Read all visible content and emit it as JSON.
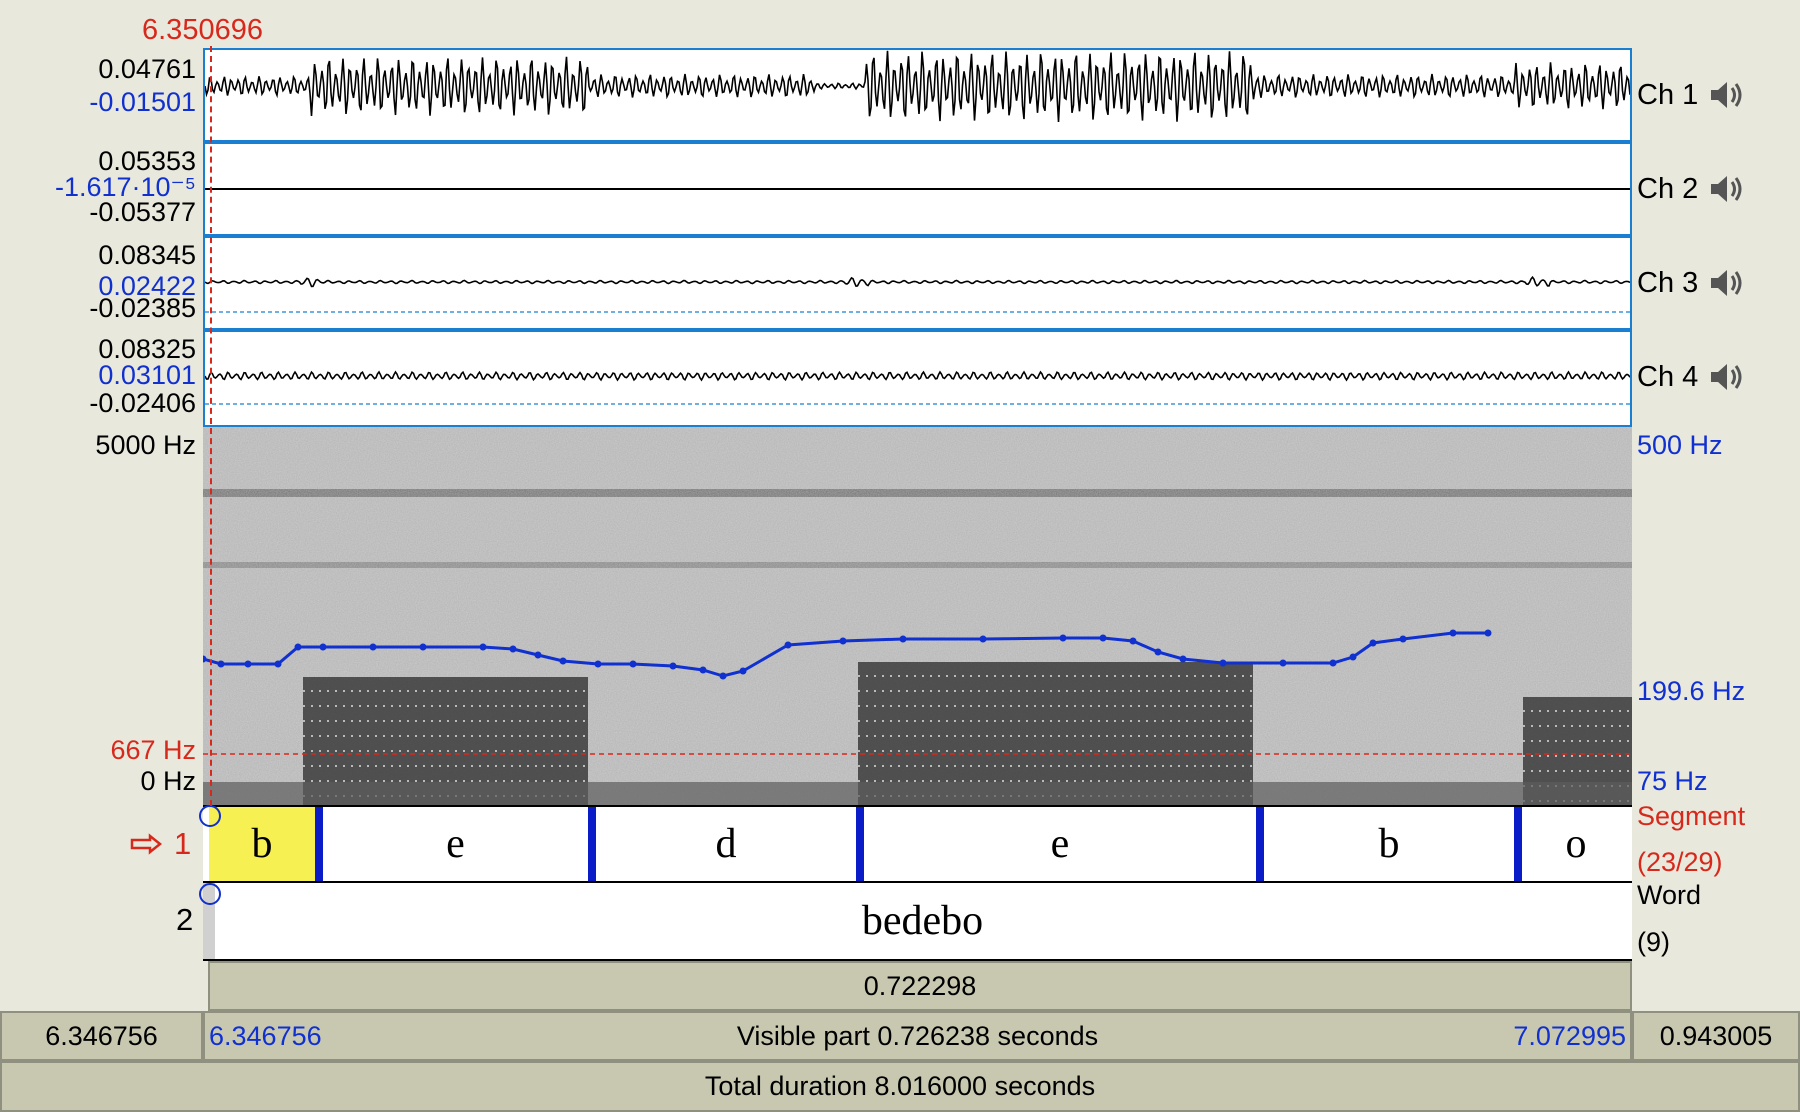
{
  "cursor_time": "6.350696",
  "channels": [
    {
      "label": "Ch 1",
      "max": "0.04761",
      "value": "-0.01501",
      "min": ""
    },
    {
      "label": "Ch 2",
      "max": "0.05353",
      "value": "-1.617·10⁻⁵",
      "min": "-0.05377"
    },
    {
      "label": "Ch 3",
      "max": "0.08345",
      "value": "0.02422",
      "min": "-0.02385"
    },
    {
      "label": "Ch 4",
      "max": "0.08325",
      "value": "0.03101",
      "min": "-0.02406"
    }
  ],
  "spectrogram": {
    "freq_top": "5000 Hz",
    "freq_cursor": "667 Hz",
    "freq_bottom": "0 Hz",
    "pitch_top": "500 Hz",
    "pitch_value": "199.6 Hz",
    "pitch_bottom": "75 Hz"
  },
  "tiers": [
    {
      "number": "1",
      "name": "Segment",
      "count": "(23/29)",
      "intervals": [
        "b",
        "e",
        "d",
        "e",
        "b",
        "o"
      ]
    },
    {
      "number": "2",
      "name": "Word",
      "count": "(9)",
      "intervals": [
        "bedebo"
      ]
    }
  ],
  "selection_duration": "0.722298",
  "bottom": {
    "left_time": "6.346756",
    "visible_start": "6.346756",
    "visible_label": "Visible part 0.726238 seconds",
    "visible_end": "7.072995",
    "right_time": "0.943005",
    "total_label": "Total duration 8.016000 seconds"
  },
  "colors": {
    "accent_blue": "#1030d0",
    "cursor_red": "#d8281c",
    "boundary": "#0a1cc8",
    "selection": "#f7f052"
  },
  "icons": [
    "speaker-icon",
    "pointing-hand-icon"
  ]
}
